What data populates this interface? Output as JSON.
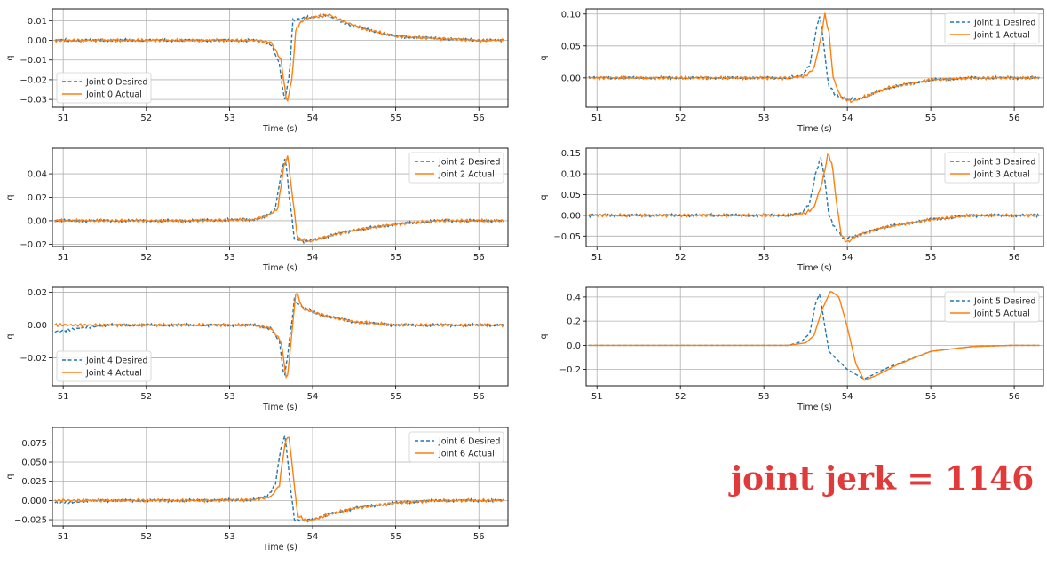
{
  "annotation": "joint jerk = 1146",
  "colors": {
    "desired": "#1f77b4",
    "actual": "#ff7f0e",
    "annotation": "#e03a3a",
    "grid": "#b0b0b0"
  },
  "chart_data": [
    {
      "type": "line",
      "joint": 0,
      "xlabel": "Time (s)",
      "ylabel": "q",
      "xlim": [
        50.87,
        56.35
      ],
      "ylim": [
        -0.034,
        0.016
      ],
      "xticks": [
        51,
        52,
        53,
        54,
        55,
        56
      ],
      "yticks": [
        0.01,
        0.0,
        -0.01,
        -0.02,
        -0.03
      ],
      "ytick_labels": [
        "0.01",
        "0.00",
        "−0.01",
        "−0.02",
        "−0.03"
      ],
      "legend": "lower-left",
      "series": [
        {
          "name": "Joint 0 Desired",
          "style": "dashed",
          "x": [
            50.9,
            51.5,
            52.5,
            53.3,
            53.5,
            53.6,
            53.66,
            53.72,
            53.76,
            53.85,
            54.0,
            54.15,
            54.3,
            54.6,
            55.0,
            55.5,
            56.0,
            56.3
          ],
          "y": [
            0.0,
            0.0,
            0.0,
            0.0,
            -0.002,
            -0.012,
            -0.031,
            -0.018,
            0.01,
            0.011,
            0.012,
            0.013,
            0.01,
            0.006,
            0.002,
            0.001,
            0.0,
            0.0
          ]
        },
        {
          "name": "Joint 0 Actual",
          "style": "solid",
          "x": [
            50.9,
            51.5,
            52.5,
            53.3,
            53.5,
            53.62,
            53.69,
            53.75,
            53.8,
            53.9,
            54.05,
            54.2,
            54.35,
            54.6,
            55.0,
            55.5,
            56.0,
            56.3
          ],
          "y": [
            0.0,
            0.0,
            0.0,
            0.0,
            -0.001,
            -0.01,
            -0.032,
            -0.02,
            0.006,
            0.011,
            0.012,
            0.013,
            0.01,
            0.006,
            0.002,
            0.001,
            0.0,
            0.0
          ]
        }
      ]
    },
    {
      "type": "line",
      "joint": 1,
      "xlabel": "Time (s)",
      "ylabel": "q",
      "xlim": [
        50.87,
        56.35
      ],
      "ylim": [
        -0.046,
        0.108
      ],
      "xticks": [
        51,
        52,
        53,
        54,
        55,
        56
      ],
      "yticks": [
        0.1,
        0.05,
        0.0
      ],
      "ytick_labels": [
        "0.10",
        "0.05",
        "0.00"
      ],
      "legend": "upper-right",
      "series": [
        {
          "name": "Joint 1 Desired",
          "style": "dashed",
          "x": [
            50.9,
            51.5,
            52.5,
            53.3,
            53.45,
            53.55,
            53.62,
            53.67,
            53.72,
            53.77,
            53.85,
            54.0,
            54.2,
            54.5,
            55.0,
            55.5,
            56.0,
            56.3
          ],
          "y": [
            0.0,
            0.0,
            0.0,
            0.0,
            0.003,
            0.02,
            0.07,
            0.1,
            0.05,
            -0.01,
            -0.025,
            -0.035,
            -0.03,
            -0.015,
            -0.003,
            0.0,
            0.0,
            0.0
          ]
        },
        {
          "name": "Joint 1 Actual",
          "style": "solid",
          "x": [
            50.9,
            51.5,
            52.5,
            53.3,
            53.5,
            53.6,
            53.68,
            53.73,
            53.78,
            53.83,
            53.92,
            54.05,
            54.2,
            54.5,
            55.0,
            55.5,
            56.0,
            56.3
          ],
          "y": [
            0.0,
            0.0,
            0.0,
            0.0,
            0.003,
            0.015,
            0.06,
            0.1,
            0.07,
            0.0,
            -0.03,
            -0.037,
            -0.03,
            -0.015,
            -0.003,
            0.0,
            0.0,
            0.0
          ]
        }
      ]
    },
    {
      "type": "line",
      "joint": 2,
      "xlabel": "Time (s)",
      "ylabel": "q",
      "xlim": [
        50.87,
        56.35
      ],
      "ylim": [
        -0.022,
        0.062
      ],
      "xticks": [
        51,
        52,
        53,
        54,
        55,
        56
      ],
      "yticks": [
        0.04,
        0.02,
        0.0,
        -0.02
      ],
      "ytick_labels": [
        "0.04",
        "0.02",
        "0.00",
        "−0.02"
      ],
      "legend": "upper-right",
      "series": [
        {
          "name": "Joint 2 Desired",
          "style": "dashed",
          "x": [
            50.9,
            51.5,
            52.5,
            53.3,
            53.45,
            53.55,
            53.62,
            53.67,
            53.72,
            53.78,
            53.9,
            54.2,
            54.5,
            55.0,
            55.5,
            56.0,
            56.3
          ],
          "y": [
            0.0,
            0.0,
            0.0,
            0.001,
            0.004,
            0.01,
            0.04,
            0.055,
            0.02,
            -0.015,
            -0.018,
            -0.013,
            -0.008,
            -0.003,
            0.0,
            0.0,
            0.0
          ]
        },
        {
          "name": "Joint 2 Actual",
          "style": "solid",
          "x": [
            50.9,
            51.5,
            52.5,
            53.3,
            53.45,
            53.58,
            53.65,
            53.7,
            53.75,
            53.82,
            53.95,
            54.2,
            54.5,
            55.0,
            55.5,
            56.0,
            56.3
          ],
          "y": [
            0.0,
            0.0,
            0.0,
            0.001,
            0.004,
            0.01,
            0.045,
            0.056,
            0.025,
            -0.015,
            -0.018,
            -0.013,
            -0.008,
            -0.003,
            0.0,
            0.0,
            0.0
          ]
        }
      ]
    },
    {
      "type": "line",
      "joint": 3,
      "xlabel": "Time (s)",
      "ylabel": "q",
      "xlim": [
        50.87,
        56.35
      ],
      "ylim": [
        -0.075,
        0.162
      ],
      "xticks": [
        51,
        52,
        53,
        54,
        55,
        56
      ],
      "yticks": [
        0.15,
        0.1,
        0.05,
        0.0,
        -0.05
      ],
      "ytick_labels": [
        "0.15",
        "0.10",
        "0.05",
        "0.00",
        "−0.05"
      ],
      "legend": "upper-right",
      "series": [
        {
          "name": "Joint 3 Desired",
          "style": "dashed",
          "x": [
            50.9,
            51.5,
            52.5,
            53.3,
            53.45,
            53.55,
            53.62,
            53.68,
            53.72,
            53.78,
            53.85,
            53.95,
            54.1,
            54.4,
            55.0,
            55.5,
            56.0,
            56.3
          ],
          "y": [
            0.0,
            0.0,
            0.0,
            0.0,
            0.005,
            0.03,
            0.1,
            0.14,
            0.1,
            0.0,
            -0.03,
            -0.055,
            -0.05,
            -0.03,
            -0.01,
            0.0,
            0.0,
            0.0
          ]
        },
        {
          "name": "Joint 3 Actual",
          "style": "solid",
          "x": [
            50.9,
            51.5,
            52.5,
            53.3,
            53.5,
            53.6,
            53.7,
            53.77,
            53.82,
            53.87,
            53.93,
            54.0,
            54.1,
            54.4,
            55.0,
            55.5,
            56.0,
            56.3
          ],
          "y": [
            0.0,
            0.0,
            0.0,
            0.0,
            0.005,
            0.02,
            0.08,
            0.15,
            0.12,
            0.03,
            -0.05,
            -0.065,
            -0.05,
            -0.03,
            -0.01,
            0.0,
            0.0,
            0.0
          ]
        }
      ]
    },
    {
      "type": "line",
      "joint": 4,
      "xlabel": "Time (s)",
      "ylabel": "q",
      "xlim": [
        50.87,
        56.35
      ],
      "ylim": [
        -0.037,
        0.023
      ],
      "xticks": [
        51,
        52,
        53,
        54,
        55,
        56
      ],
      "yticks": [
        0.02,
        0.0,
        -0.02
      ],
      "ytick_labels": [
        "0.02",
        "0.00",
        "−0.02"
      ],
      "legend": "lower-left",
      "series": [
        {
          "name": "Joint 4 Desired",
          "style": "dashed",
          "x": [
            50.9,
            51.5,
            52.5,
            53.3,
            53.5,
            53.6,
            53.66,
            53.72,
            53.78,
            53.85,
            54.0,
            54.2,
            54.5,
            55.0,
            55.5,
            56.0,
            56.3
          ],
          "y": [
            -0.004,
            0.0,
            0.0,
            0.0,
            -0.002,
            -0.01,
            -0.033,
            -0.01,
            0.015,
            0.012,
            0.008,
            0.005,
            0.002,
            0.0,
            0.0,
            0.0,
            0.0
          ]
        },
        {
          "name": "Joint 4 Actual",
          "style": "solid",
          "x": [
            50.9,
            51.5,
            52.5,
            53.3,
            53.5,
            53.62,
            53.69,
            53.75,
            53.8,
            53.88,
            54.0,
            54.2,
            54.5,
            55.0,
            55.5,
            56.0,
            56.3
          ],
          "y": [
            0.0,
            0.0,
            0.0,
            0.0,
            -0.002,
            -0.01,
            -0.035,
            -0.005,
            0.021,
            0.01,
            0.008,
            0.005,
            0.002,
            0.0,
            0.0,
            0.0,
            0.0
          ]
        }
      ]
    },
    {
      "type": "line",
      "joint": 5,
      "xlabel": "Time (s)",
      "ylabel": "q",
      "xlim": [
        50.87,
        56.35
      ],
      "ylim": [
        -0.335,
        0.48
      ],
      "xticks": [
        51,
        52,
        53,
        54,
        55,
        56
      ],
      "yticks": [
        0.4,
        0.2,
        0.0,
        -0.2
      ],
      "ytick_labels": [
        "0.4",
        "0.2",
        "0.0",
        "−0.2"
      ],
      "legend": "upper-right",
      "series": [
        {
          "name": "Joint 5 Desired",
          "style": "dashed",
          "x": [
            50.9,
            51.5,
            52.5,
            53.3,
            53.45,
            53.55,
            53.62,
            53.67,
            53.72,
            53.78,
            53.85,
            54.0,
            54.2,
            54.5,
            55.0,
            55.5,
            56.0,
            56.3
          ],
          "y": [
            0.0,
            0.0,
            0.0,
            0.0,
            0.03,
            0.1,
            0.35,
            0.43,
            0.2,
            -0.05,
            -0.1,
            -0.2,
            -0.28,
            -0.18,
            -0.05,
            -0.01,
            0.0,
            0.0
          ]
        },
        {
          "name": "Joint 5 Actual",
          "style": "solid",
          "x": [
            50.9,
            51.5,
            52.5,
            53.3,
            53.5,
            53.6,
            53.7,
            53.8,
            53.9,
            54.0,
            54.1,
            54.2,
            54.35,
            54.6,
            55.0,
            55.5,
            56.0,
            56.3
          ],
          "y": [
            0.0,
            0.0,
            0.0,
            0.0,
            0.02,
            0.08,
            0.3,
            0.45,
            0.4,
            0.15,
            -0.15,
            -0.29,
            -0.25,
            -0.16,
            -0.05,
            -0.01,
            0.0,
            0.0
          ]
        }
      ]
    },
    {
      "type": "line",
      "joint": 6,
      "xlabel": "Time (s)",
      "ylabel": "q",
      "xlim": [
        50.87,
        56.35
      ],
      "ylim": [
        -0.033,
        0.095
      ],
      "xticks": [
        51,
        52,
        53,
        54,
        55,
        56
      ],
      "yticks": [
        0.075,
        0.05,
        0.025,
        0.0,
        -0.025
      ],
      "ytick_labels": [
        "0.075",
        "0.050",
        "0.025",
        "0.000",
        "−0.025"
      ],
      "legend": "upper-right",
      "series": [
        {
          "name": "Joint 6 Desired",
          "style": "dashed",
          "x": [
            50.9,
            51.5,
            52.5,
            53.3,
            53.45,
            53.55,
            53.62,
            53.67,
            53.72,
            53.78,
            53.9,
            54.2,
            54.5,
            55.0,
            55.5,
            56.0,
            56.3
          ],
          "y": [
            -0.003,
            0.0,
            0.0,
            0.001,
            0.005,
            0.02,
            0.07,
            0.085,
            0.03,
            -0.025,
            -0.027,
            -0.018,
            -0.01,
            -0.003,
            0.0,
            0.0,
            0.0
          ]
        },
        {
          "name": "Joint 6 Actual",
          "style": "solid",
          "x": [
            50.9,
            51.5,
            52.5,
            53.3,
            53.5,
            53.6,
            53.66,
            53.71,
            53.76,
            53.82,
            53.95,
            54.2,
            54.5,
            55.0,
            55.5,
            56.0,
            56.3
          ],
          "y": [
            0.0,
            0.0,
            0.0,
            0.001,
            0.005,
            0.02,
            0.07,
            0.087,
            0.04,
            -0.02,
            -0.027,
            -0.018,
            -0.01,
            -0.003,
            0.0,
            0.0,
            0.0
          ]
        }
      ]
    }
  ]
}
